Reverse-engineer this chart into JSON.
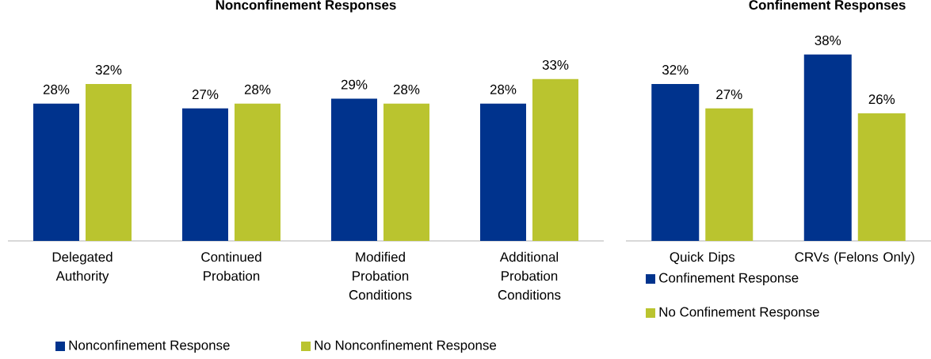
{
  "chart_data": [
    {
      "type": "bar",
      "title": "Nonconfinement Responses",
      "categories": [
        "Delegated Authority",
        "Continued Probation",
        "Modified Probation Conditions",
        "Additional Probation Conditions"
      ],
      "legend": "bottom",
      "series": [
        {
          "name": "Nonconfinement Response",
          "color": "#00338d",
          "values": [
            28,
            27,
            29,
            28
          ],
          "value_labels": [
            "28%",
            "27%",
            "29%",
            "28%"
          ]
        },
        {
          "name": "No Nonconfinement Response",
          "color": "#bac42f",
          "values": [
            32,
            28,
            28,
            33
          ],
          "value_labels": [
            "32%",
            "28%",
            "28%",
            "33%"
          ]
        }
      ]
    },
    {
      "type": "bar",
      "title": "Confinement Responses",
      "categories": [
        "Quick Dips",
        "CRVs (Felons Only)"
      ],
      "legend": "bottom left",
      "series": [
        {
          "name": "Confinement Response",
          "color": "#00338d",
          "values": [
            32,
            38
          ],
          "value_labels": [
            "32%",
            "38%"
          ]
        },
        {
          "name": "No Confinement Response",
          "color": "#bac42f",
          "values": [
            27,
            26
          ],
          "value_labels": [
            "27%",
            "26%"
          ]
        }
      ]
    }
  ]
}
